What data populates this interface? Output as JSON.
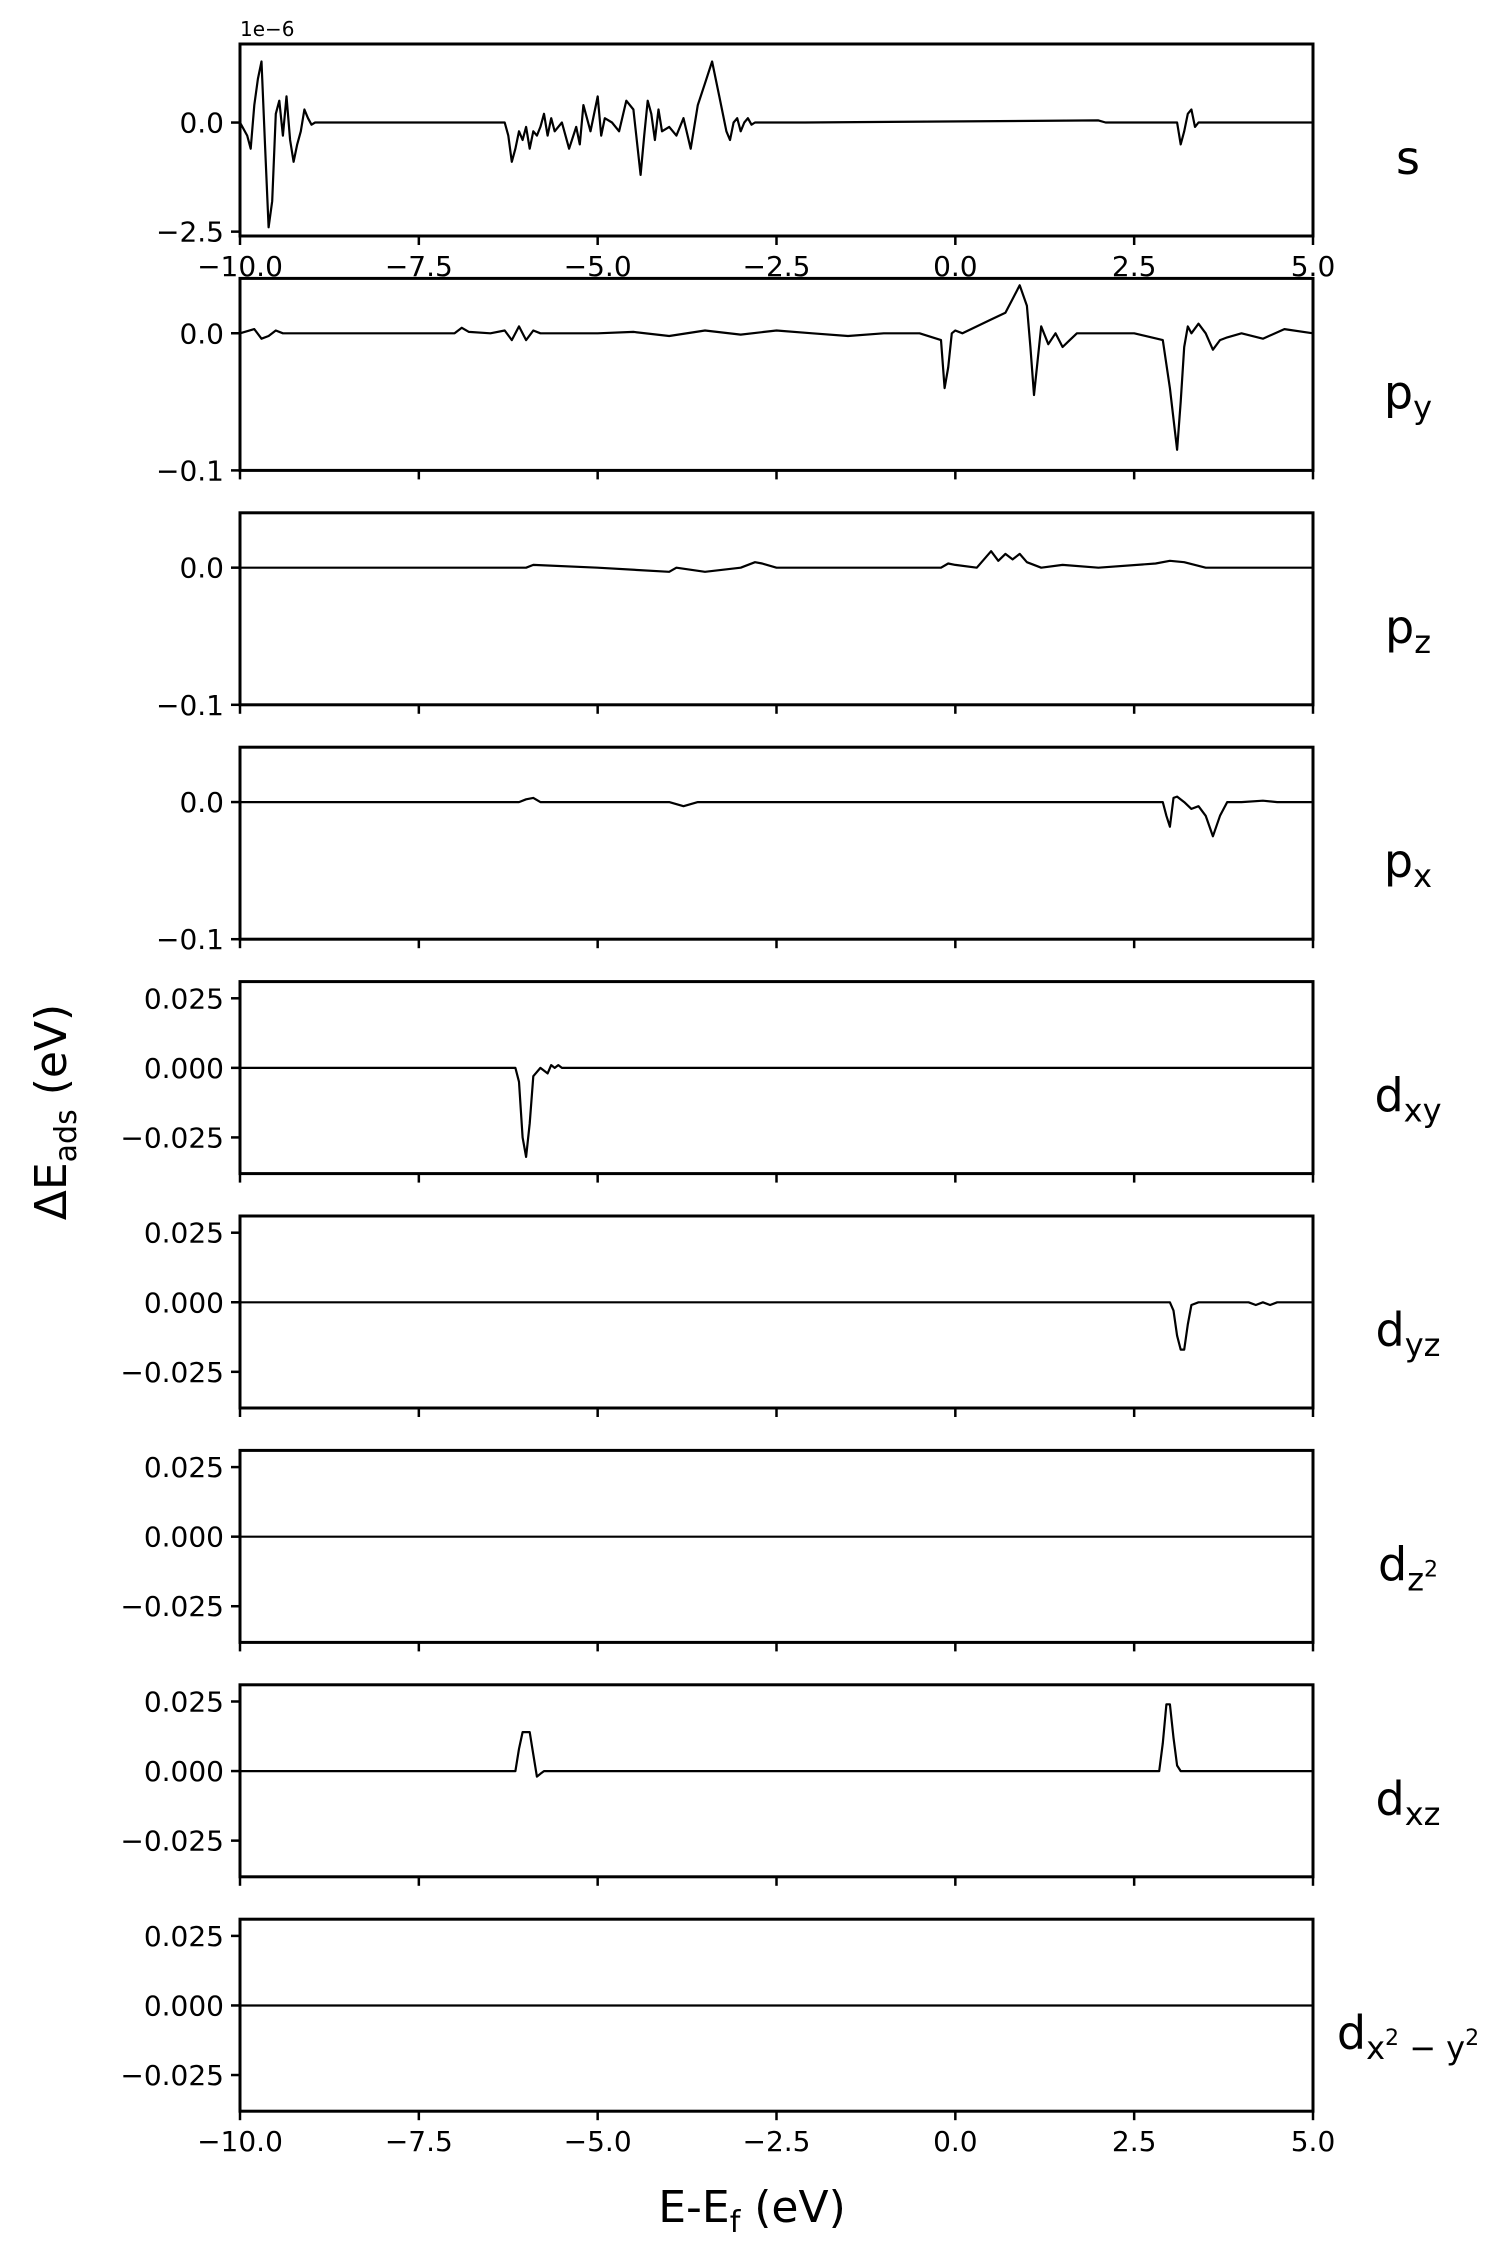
{
  "figure": {
    "xlabel": "E-E",
    "xlabel_sub": "f",
    "xlabel_unit": " (eV)",
    "ylabel": "ΔE",
    "ylabel_sub": "ads",
    "ylabel_unit": " (eV)"
  },
  "chart_data": [
    {
      "type": "line",
      "name": "s",
      "label_main": "s",
      "label_sub": "",
      "label_sup": "",
      "offset_text": "1e−6",
      "xlim": [
        -10.0,
        5.0
      ],
      "ylim": [
        -2.6,
        1.8
      ],
      "yticks": [
        0.0,
        -2.5
      ],
      "ytick_labels": [
        "0.0",
        "−2.5"
      ],
      "xticks": [
        -10.0,
        -7.5,
        -5.0,
        -2.5,
        0.0,
        2.5,
        5.0
      ],
      "xtick_labels": [
        "−10.0",
        "−7.5",
        "−5.0",
        "−2.5",
        "0.0",
        "2.5",
        "5.0"
      ],
      "x": [
        -10.0,
        -9.9,
        -9.85,
        -9.8,
        -9.75,
        -9.7,
        -9.65,
        -9.6,
        -9.55,
        -9.5,
        -9.45,
        -9.4,
        -9.35,
        -9.3,
        -9.25,
        -9.2,
        -9.15,
        -9.1,
        -9.05,
        -9.0,
        -8.95,
        -8.9,
        -8.8,
        -6.3,
        -6.25,
        -6.2,
        -6.15,
        -6.1,
        -6.05,
        -6.0,
        -5.95,
        -5.9,
        -5.85,
        -5.8,
        -5.75,
        -5.7,
        -5.65,
        -5.6,
        -5.5,
        -5.4,
        -5.3,
        -5.25,
        -5.2,
        -5.1,
        -5.0,
        -4.95,
        -4.9,
        -4.8,
        -4.7,
        -4.6,
        -4.5,
        -4.4,
        -4.35,
        -4.3,
        -4.25,
        -4.2,
        -4.15,
        -4.1,
        -4.0,
        -3.9,
        -3.8,
        -3.7,
        -3.6,
        -3.5,
        -3.4,
        -3.3,
        -3.2,
        -3.15,
        -3.1,
        -3.05,
        -3.0,
        -2.95,
        -2.9,
        -2.85,
        -2.8,
        -2.75,
        -2.7,
        -2.6,
        -2.55,
        -2.5,
        -2.4,
        -2.3,
        -2.2,
        -2.1,
        2.0,
        2.1,
        3.1,
        3.15,
        3.2,
        3.25,
        3.3,
        3.35,
        3.4,
        5.0
      ],
      "y": [
        0.0,
        -0.3,
        -0.6,
        0.4,
        1.0,
        1.4,
        -0.5,
        -2.4,
        -1.8,
        0.2,
        0.5,
        -0.3,
        0.6,
        -0.4,
        -0.9,
        -0.5,
        -0.2,
        0.3,
        0.1,
        -0.05,
        0.0,
        0.0,
        0.0,
        0.0,
        -0.3,
        -0.9,
        -0.6,
        -0.2,
        -0.4,
        -0.1,
        -0.6,
        -0.2,
        -0.3,
        -0.1,
        0.2,
        -0.3,
        0.1,
        -0.2,
        0.0,
        -0.6,
        -0.1,
        -0.5,
        0.4,
        -0.2,
        0.6,
        -0.3,
        0.1,
        0.0,
        -0.2,
        0.5,
        0.3,
        -1.2,
        -0.3,
        0.5,
        0.2,
        -0.4,
        0.3,
        -0.2,
        -0.1,
        -0.3,
        0.1,
        -0.6,
        0.4,
        0.9,
        1.4,
        0.6,
        -0.2,
        -0.4,
        0.0,
        0.1,
        -0.2,
        0.0,
        0.1,
        -0.05,
        0.0,
        0.0,
        0.0,
        0.0,
        0.0,
        0.0,
        0.0,
        0.0,
        0.0,
        0.0,
        0.05,
        0.0,
        0.0,
        -0.5,
        -0.2,
        0.2,
        0.3,
        -0.1,
        0.0,
        0.0
      ]
    },
    {
      "type": "line",
      "name": "py",
      "label_main": "p",
      "label_sub": "y",
      "label_sup": "",
      "offset_text": "",
      "xlim": [
        -10.0,
        5.0
      ],
      "ylim": [
        -0.1,
        0.04
      ],
      "yticks": [
        0.0,
        -0.1
      ],
      "ytick_labels": [
        "0.0",
        "−0.1"
      ],
      "xticks": [
        -10.0,
        -7.5,
        -5.0,
        -2.5,
        0.0,
        2.5,
        5.0
      ],
      "xtick_labels": [
        "",
        "",
        "",
        "",
        "",
        "",
        ""
      ],
      "x": [
        -10.0,
        -9.8,
        -9.7,
        -9.6,
        -9.5,
        -9.4,
        -7.0,
        -6.9,
        -6.8,
        -6.5,
        -6.3,
        -6.2,
        -6.1,
        -6.0,
        -5.9,
        -5.8,
        -5.0,
        -4.5,
        -4.0,
        -3.5,
        -3.0,
        -2.5,
        -2.0,
        -1.5,
        -1.0,
        -0.5,
        -0.2,
        -0.15,
        -0.1,
        -0.05,
        0.0,
        0.1,
        0.3,
        0.5,
        0.7,
        0.8,
        0.9,
        1.0,
        1.05,
        1.1,
        1.15,
        1.2,
        1.3,
        1.4,
        1.5,
        1.6,
        1.7,
        2.0,
        2.5,
        2.9,
        3.0,
        3.1,
        3.15,
        3.2,
        3.25,
        3.3,
        3.4,
        3.5,
        3.6,
        3.7,
        3.8,
        4.0,
        4.3,
        4.6,
        5.0
      ],
      "y": [
        0.0,
        0.003,
        -0.004,
        -0.002,
        0.002,
        0.0,
        0.0,
        0.004,
        0.001,
        0.0,
        0.002,
        -0.005,
        0.005,
        -0.005,
        0.002,
        0.0,
        0.0,
        0.001,
        -0.002,
        0.002,
        -0.001,
        0.002,
        0.0,
        -0.002,
        0.0,
        0.0,
        -0.005,
        -0.04,
        -0.025,
        0.0,
        0.002,
        0.0,
        0.005,
        0.01,
        0.015,
        0.025,
        0.035,
        0.02,
        -0.01,
        -0.045,
        -0.02,
        0.005,
        -0.008,
        0.0,
        -0.01,
        -0.005,
        0.0,
        0.0,
        0.0,
        -0.005,
        -0.04,
        -0.085,
        -0.05,
        -0.01,
        0.005,
        0.0,
        0.007,
        0.0,
        -0.012,
        -0.005,
        -0.003,
        0.0,
        -0.004,
        0.003,
        0.0
      ]
    },
    {
      "type": "line",
      "name": "pz",
      "label_main": "p",
      "label_sub": "z",
      "label_sup": "",
      "offset_text": "",
      "xlim": [
        -10.0,
        5.0
      ],
      "ylim": [
        -0.1,
        0.04
      ],
      "yticks": [
        0.0,
        -0.1
      ],
      "ytick_labels": [
        "0.0",
        "−0.1"
      ],
      "xticks": [
        -10.0,
        -7.5,
        -5.0,
        -2.5,
        0.0,
        2.5,
        5.0
      ],
      "xtick_labels": [
        "",
        "",
        "",
        "",
        "",
        "",
        ""
      ],
      "x": [
        -10.0,
        -8.0,
        -6.0,
        -5.9,
        -5.0,
        -4.0,
        -3.9,
        -3.5,
        -3.0,
        -2.8,
        -2.7,
        -2.5,
        -1.0,
        -0.2,
        -0.1,
        0.0,
        0.3,
        0.5,
        0.6,
        0.7,
        0.8,
        0.9,
        1.0,
        1.2,
        1.5,
        2.0,
        2.8,
        3.0,
        3.2,
        3.5,
        4.0,
        5.0
      ],
      "y": [
        0.0,
        0.0,
        0.0,
        0.002,
        0.0,
        -0.003,
        0.0,
        -0.003,
        0.0,
        0.004,
        0.003,
        0.0,
        0.0,
        0.0,
        0.003,
        0.002,
        0.0,
        0.012,
        0.005,
        0.01,
        0.006,
        0.01,
        0.004,
        0.0,
        0.002,
        0.0,
        0.003,
        0.005,
        0.004,
        0.0,
        0.0,
        0.0
      ]
    },
    {
      "type": "line",
      "name": "px",
      "label_main": "p",
      "label_sub": "x",
      "label_sup": "",
      "offset_text": "",
      "xlim": [
        -10.0,
        5.0
      ],
      "ylim": [
        -0.1,
        0.04
      ],
      "yticks": [
        0.0,
        -0.1
      ],
      "ytick_labels": [
        "0.0",
        "−0.1"
      ],
      "xticks": [
        -10.0,
        -7.5,
        -5.0,
        -2.5,
        0.0,
        2.5,
        5.0
      ],
      "xtick_labels": [
        "",
        "",
        "",
        "",
        "",
        "",
        ""
      ],
      "x": [
        -10.0,
        -6.1,
        -6.0,
        -5.9,
        -5.8,
        -4.0,
        -3.8,
        -3.6,
        2.9,
        2.95,
        3.0,
        3.05,
        3.1,
        3.2,
        3.3,
        3.4,
        3.5,
        3.6,
        3.7,
        3.8,
        4.0,
        4.3,
        4.5,
        5.0
      ],
      "y": [
        0.0,
        0.0,
        0.002,
        0.003,
        0.0,
        0.0,
        -0.003,
        0.0,
        0.0,
        -0.01,
        -0.018,
        0.003,
        0.004,
        0.0,
        -0.005,
        -0.003,
        -0.01,
        -0.025,
        -0.01,
        0.0,
        0.0,
        0.001,
        0.0,
        0.0
      ]
    },
    {
      "type": "line",
      "name": "dxy",
      "label_main": "d",
      "label_sub": "xy",
      "label_sup": "",
      "offset_text": "",
      "xlim": [
        -10.0,
        5.0
      ],
      "ylim": [
        -0.038,
        0.031
      ],
      "yticks": [
        0.025,
        0.0,
        -0.025
      ],
      "ytick_labels": [
        "0.025",
        "0.000",
        "−0.025"
      ],
      "xticks": [
        -10.0,
        -7.5,
        -5.0,
        -2.5,
        0.0,
        2.5,
        5.0
      ],
      "xtick_labels": [
        "",
        "",
        "",
        "",
        "",
        "",
        ""
      ],
      "x": [
        -10.0,
        -6.15,
        -6.1,
        -6.05,
        -6.0,
        -5.95,
        -5.9,
        -5.8,
        -5.7,
        -5.65,
        -5.6,
        -5.55,
        -5.5,
        5.0
      ],
      "y": [
        0.0,
        0.0,
        -0.005,
        -0.025,
        -0.032,
        -0.02,
        -0.003,
        0.0,
        -0.002,
        0.001,
        0.0,
        0.001,
        0.0,
        0.0
      ]
    },
    {
      "type": "line",
      "name": "dyz",
      "label_main": "d",
      "label_sub": "yz",
      "label_sup": "",
      "offset_text": "",
      "xlim": [
        -10.0,
        5.0
      ],
      "ylim": [
        -0.038,
        0.031
      ],
      "yticks": [
        0.025,
        0.0,
        -0.025
      ],
      "ytick_labels": [
        "0.025",
        "0.000",
        "−0.025"
      ],
      "xticks": [
        -10.0,
        -7.5,
        -5.0,
        -2.5,
        0.0,
        2.5,
        5.0
      ],
      "xtick_labels": [
        "",
        "",
        "",
        "",
        "",
        "",
        ""
      ],
      "x": [
        -10.0,
        3.0,
        3.05,
        3.1,
        3.15,
        3.2,
        3.25,
        3.3,
        3.4,
        4.1,
        4.2,
        4.3,
        4.4,
        4.5,
        5.0
      ],
      "y": [
        0.0,
        0.0,
        -0.003,
        -0.012,
        -0.017,
        -0.017,
        -0.008,
        -0.001,
        0.0,
        0.0,
        -0.001,
        0.0,
        -0.001,
        0.0,
        0.0
      ]
    },
    {
      "type": "line",
      "name": "dz2",
      "label_main": "d",
      "label_sub": "z",
      "label_sup": "2",
      "offset_text": "",
      "xlim": [
        -10.0,
        5.0
      ],
      "ylim": [
        -0.038,
        0.031
      ],
      "yticks": [
        0.025,
        0.0,
        -0.025
      ],
      "ytick_labels": [
        "0.025",
        "0.000",
        "−0.025"
      ],
      "xticks": [
        -10.0,
        -7.5,
        -5.0,
        -2.5,
        0.0,
        2.5,
        5.0
      ],
      "xtick_labels": [
        "",
        "",
        "",
        "",
        "",
        "",
        ""
      ],
      "x": [
        -10.0,
        5.0
      ],
      "y": [
        0.0,
        0.0
      ]
    },
    {
      "type": "line",
      "name": "dxz",
      "label_main": "d",
      "label_sub": "xz",
      "label_sup": "",
      "offset_text": "",
      "xlim": [
        -10.0,
        5.0
      ],
      "ylim": [
        -0.038,
        0.031
      ],
      "yticks": [
        0.025,
        0.0,
        -0.025
      ],
      "ytick_labels": [
        "0.025",
        "0.000",
        "−0.025"
      ],
      "xticks": [
        -10.0,
        -7.5,
        -5.0,
        -2.5,
        0.0,
        2.5,
        5.0
      ],
      "xtick_labels": [
        "",
        "",
        "",
        "",
        "",
        "",
        ""
      ],
      "x": [
        -10.0,
        -6.15,
        -6.1,
        -6.05,
        -6.0,
        -5.95,
        -5.9,
        -5.85,
        -5.8,
        -5.75,
        -5.7,
        2.85,
        2.9,
        2.95,
        3.0,
        3.05,
        3.1,
        3.15,
        5.0
      ],
      "y": [
        0.0,
        0.0,
        0.008,
        0.014,
        0.014,
        0.014,
        0.006,
        -0.002,
        -0.001,
        0.0,
        0.0,
        0.0,
        0.01,
        0.024,
        0.024,
        0.012,
        0.002,
        0.0,
        0.0
      ]
    },
    {
      "type": "line",
      "name": "dx2-y2",
      "label_main": "d",
      "label_sub": "x",
      "label_sup": "2",
      "label_sub2": " − y",
      "label_sup2": "2",
      "offset_text": "",
      "xlim": [
        -10.0,
        5.0
      ],
      "ylim": [
        -0.038,
        0.031
      ],
      "yticks": [
        0.025,
        0.0,
        -0.025
      ],
      "ytick_labels": [
        "0.025",
        "0.000",
        "−0.025"
      ],
      "xticks": [
        -10.0,
        -7.5,
        -5.0,
        -2.5,
        0.0,
        2.5,
        5.0
      ],
      "xtick_labels": [
        "−10.0",
        "−7.5",
        "−5.0",
        "−2.5",
        "0.0",
        "2.5",
        "5.0"
      ],
      "x": [
        -10.0,
        5.0
      ],
      "y": [
        0.0,
        0.0
      ]
    }
  ]
}
